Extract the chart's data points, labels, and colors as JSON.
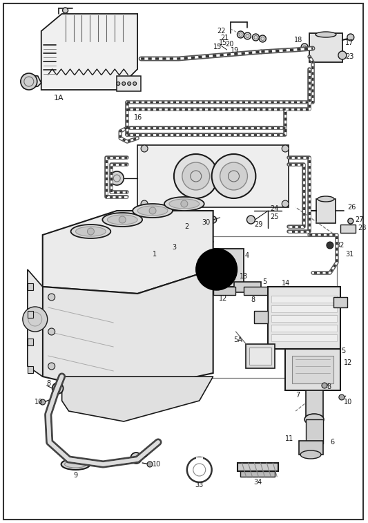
{
  "background_color": "#ffffff",
  "fig_width": 5.33,
  "fig_height": 7.57,
  "dpi": 100,
  "line_color": "#1a1a1a",
  "label_fontsize": 6.5,
  "border_lw": 1.5
}
